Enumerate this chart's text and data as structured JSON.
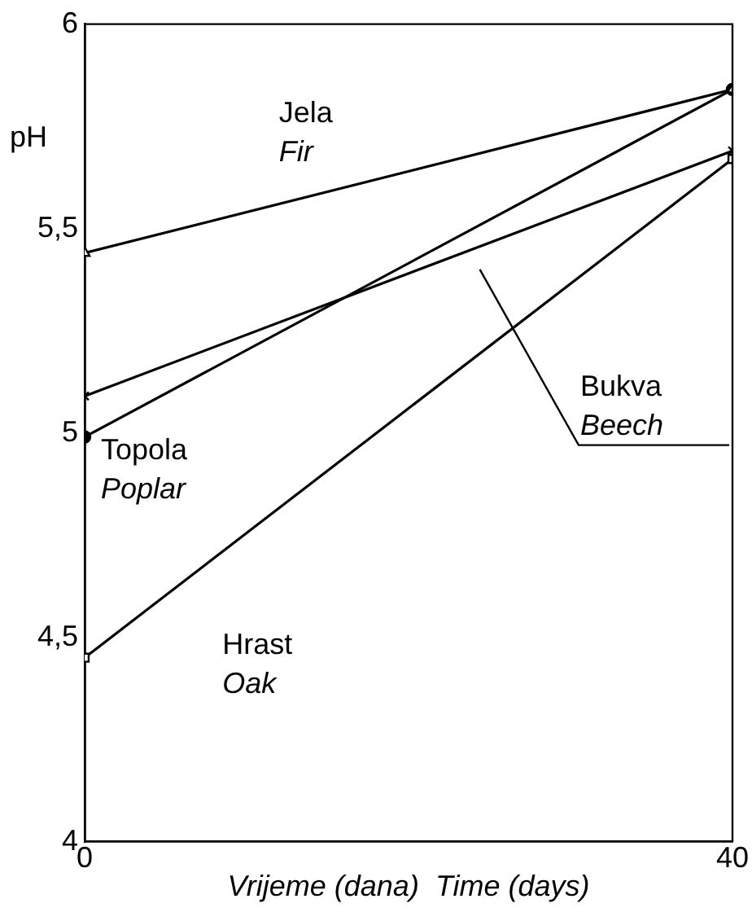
{
  "chart_data": {
    "type": "line",
    "xlabel": "Vrijeme (dana)  Time (days)",
    "ylabel": "pH",
    "x": [
      0,
      40
    ],
    "xlim": [
      0,
      40
    ],
    "xticks": [
      0,
      40
    ],
    "ylim": [
      4,
      6
    ],
    "yticks": [
      4,
      {
        "value": 4.5,
        "label": "4,5"
      },
      5,
      {
        "value": 5.5,
        "label": "5,5"
      },
      6
    ],
    "grid": false,
    "legend": false,
    "series": [
      {
        "name": "Jela\nFir",
        "color": "#000000",
        "values": [
          5.44,
          5.84
        ],
        "marker": "triangle"
      },
      {
        "name": "Bukva\nBeech",
        "color": "#000000",
        "values": [
          5.09,
          5.69
        ],
        "marker": "cross"
      },
      {
        "name": "Topola\nPoplar",
        "color": "#000000",
        "values": [
          4.99,
          5.84
        ],
        "marker": "circle"
      },
      {
        "name": "Hrast\nOak",
        "color": "#000000",
        "values": [
          4.45,
          5.67
        ],
        "marker": "square"
      }
    ]
  }
}
